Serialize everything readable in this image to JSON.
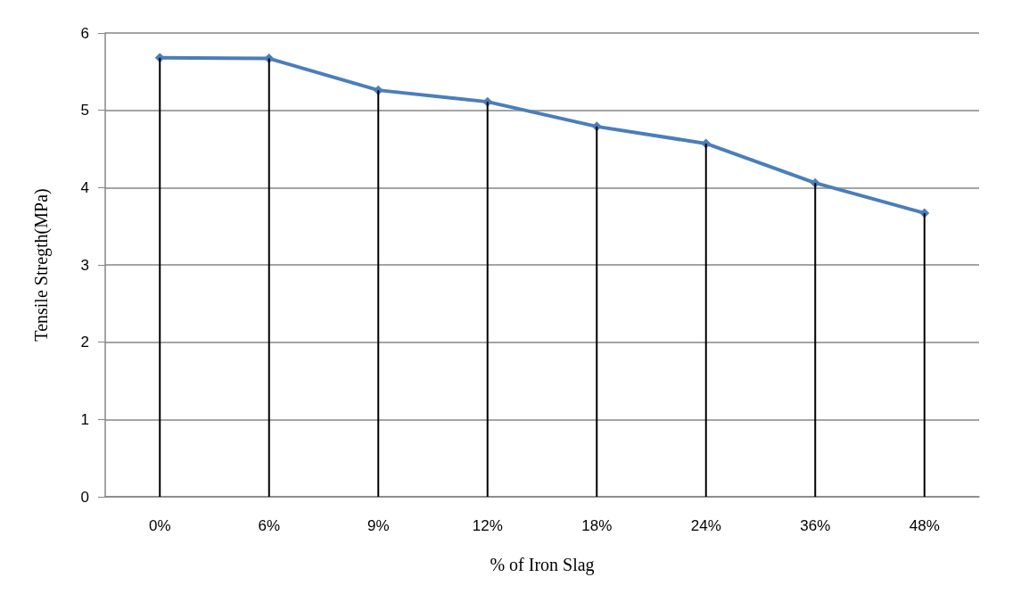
{
  "chart_data": {
    "type": "line",
    "xlabel": "% of Iron Slag",
    "ylabel": "Tensile Stregth(MPa)",
    "categories": [
      "0%",
      "6%",
      "9%",
      "12%",
      "18%",
      "24%",
      "36%",
      "48%"
    ],
    "series": [
      {
        "type": "bar",
        "color": "#000000",
        "values": [
          5.68,
          5.67,
          5.26,
          5.11,
          4.79,
          4.57,
          4.06,
          3.67
        ]
      },
      {
        "color": "#4a7ebb",
        "values": [
          5.68,
          5.67,
          5.26,
          5.11,
          4.79,
          4.57,
          4.06,
          3.67
        ]
      }
    ],
    "ylim": [
      0,
      6
    ],
    "yticks": [
      0,
      1,
      2,
      3,
      4,
      5,
      6
    ],
    "grid": "y",
    "marker": "diamond"
  }
}
